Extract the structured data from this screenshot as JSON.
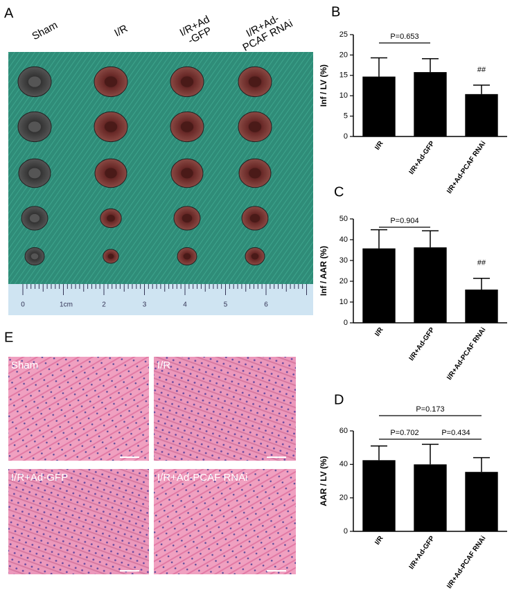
{
  "panel_a": {
    "letter": "A",
    "columns": [
      "Sham",
      "I/R",
      "I/R+Ad\n-GFP",
      "I/R+Ad-\nPCAF RNAi"
    ],
    "ruler": [
      "0",
      "1cm",
      "2",
      "3",
      "4",
      "5",
      "6"
    ]
  },
  "panel_e": {
    "letter": "E",
    "images": [
      "Sham",
      "I/R",
      "I/R+Ad-GFP",
      "I/R+Ad-PCAF RNAi"
    ]
  },
  "chart_data": [
    {
      "type": "bar",
      "panel": "B",
      "y_label": "Inf / LV (%)",
      "categories": [
        "I/R",
        "I/R+Ad-GFP",
        "I/R+Ad-PCAF RNAi"
      ],
      "values": [
        14.7,
        15.8,
        10.4
      ],
      "errors": [
        4.6,
        3.3,
        2.2
      ],
      "color": "#000000",
      "ylim": [
        0,
        25
      ],
      "yticks": [
        0,
        5,
        10,
        15,
        20,
        25
      ],
      "comparisons": [
        {
          "label": "P=0.653",
          "between": [
            0,
            1
          ]
        }
      ],
      "annotations": [
        {
          "text": "##",
          "category": 2
        }
      ]
    },
    {
      "type": "bar",
      "panel": "C",
      "y_label": "Inf / AAR (%)",
      "categories": [
        "I/R",
        "I/R+Ad-GFP",
        "I/R+Ad-PCAF RNAi"
      ],
      "values": [
        35.8,
        36.3,
        16
      ],
      "errors": [
        9,
        8,
        5.4
      ],
      "color": "#000000",
      "ylim": [
        0,
        50
      ],
      "yticks": [
        0,
        10,
        20,
        30,
        40,
        50
      ],
      "comparisons": [
        {
          "label": "P=0.904",
          "between": [
            0,
            1
          ]
        }
      ],
      "annotations": [
        {
          "text": "##",
          "category": 2
        }
      ]
    },
    {
      "type": "bar",
      "panel": "D",
      "y_label": "AAR / LV (%)",
      "categories": [
        "I/R",
        "I/R+Ad-GFP",
        "I/R+Ad-PCAF RNAi"
      ],
      "values": [
        42.5,
        40,
        35.5
      ],
      "errors": [
        8.5,
        12,
        8.5
      ],
      "color": "#000000",
      "ylim": [
        0,
        60
      ],
      "yticks": [
        0,
        20,
        40,
        60
      ],
      "comparisons": [
        {
          "label": "P=0.702",
          "between": [
            0,
            1
          ]
        },
        {
          "label": "P=0.434",
          "between": [
            1,
            2
          ]
        },
        {
          "label": "P=0.173",
          "between": [
            0,
            2
          ]
        }
      ]
    }
  ]
}
